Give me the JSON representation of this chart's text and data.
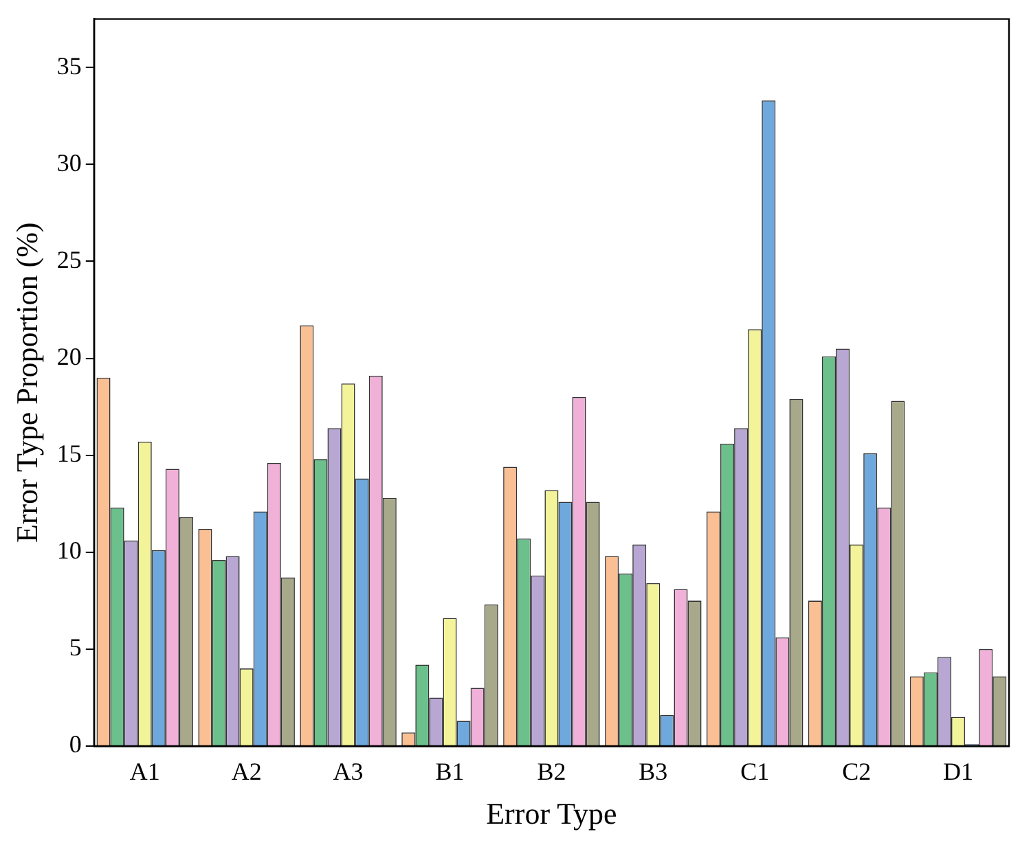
{
  "chart_data": {
    "type": "bar",
    "xlabel": "Error Type",
    "ylabel": "Error Type Proportion (%)",
    "categories": [
      "A1",
      "A2",
      "A3",
      "B1",
      "B2",
      "B3",
      "C1",
      "C2",
      "D1"
    ],
    "series": [
      {
        "color": "#fbbf94",
        "values": [
          19.0,
          11.2,
          21.7,
          0.7,
          14.4,
          9.8,
          12.1,
          7.5,
          3.6
        ]
      },
      {
        "color": "#6cc08b",
        "values": [
          12.3,
          9.6,
          14.8,
          4.2,
          10.7,
          8.9,
          15.6,
          20.1,
          3.8
        ]
      },
      {
        "color": "#b8a7d3",
        "values": [
          10.6,
          9.8,
          16.4,
          2.5,
          8.8,
          10.4,
          16.4,
          20.5,
          4.6
        ]
      },
      {
        "color": "#f3f39a",
        "values": [
          15.7,
          4.0,
          18.7,
          6.6,
          13.2,
          8.4,
          21.5,
          10.4,
          1.5
        ]
      },
      {
        "color": "#6fa8dc",
        "values": [
          10.1,
          12.1,
          13.8,
          1.3,
          12.6,
          1.6,
          33.3,
          15.1,
          0.1
        ]
      },
      {
        "color": "#f0b0d8",
        "values": [
          14.3,
          14.6,
          19.1,
          3.0,
          18.0,
          8.1,
          5.6,
          12.3,
          5.0
        ]
      },
      {
        "color": "#a8a88a",
        "values": [
          11.8,
          8.7,
          12.8,
          7.3,
          12.6,
          7.5,
          17.9,
          17.8,
          3.6
        ]
      }
    ],
    "ylim": [
      0,
      37.5
    ],
    "yticks": [
      0,
      5,
      10,
      15,
      20,
      25,
      30,
      35
    ],
    "grid": false
  }
}
